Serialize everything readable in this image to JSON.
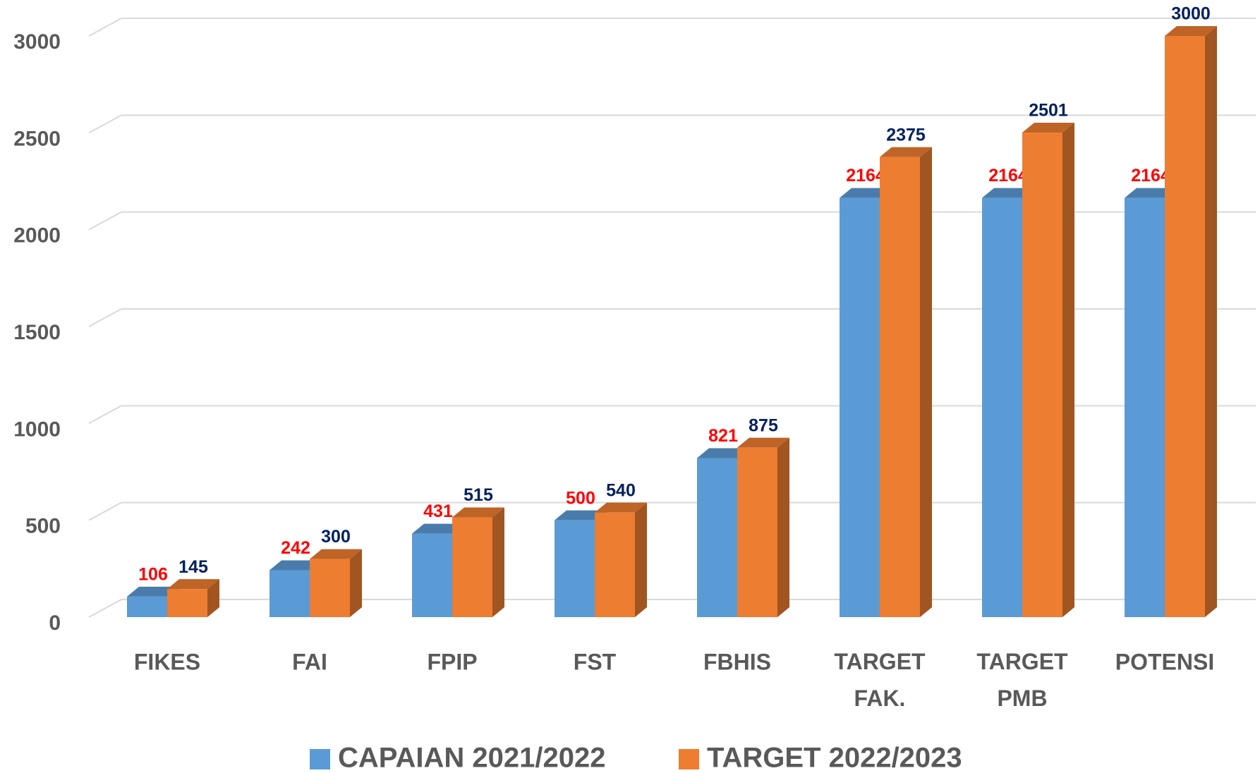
{
  "chart_data": {
    "type": "bar3d",
    "categories": [
      "FIKES",
      "FAI",
      "FPIP",
      "FST",
      "FBHIS",
      "TARGET FAK.",
      "TARGET PMB",
      "POTENSI"
    ],
    "series": [
      {
        "name": "CAPAIAN 2021/2022",
        "color": "#5b9bd5",
        "label_color": "#ff0000",
        "values": [
          106,
          242,
          431,
          500,
          821,
          2164,
          2164,
          2164
        ]
      },
      {
        "name": "TARGET 2022/2023",
        "color": "#ed7d31",
        "label_color": "#002060",
        "values": [
          145,
          300,
          515,
          540,
          875,
          2375,
          2501,
          3000
        ]
      }
    ],
    "ylim": [
      0,
      3000
    ],
    "yticks": [
      0,
      500,
      1000,
      1500,
      2000,
      2500,
      3000
    ],
    "grid": true,
    "legend": "bottom"
  }
}
